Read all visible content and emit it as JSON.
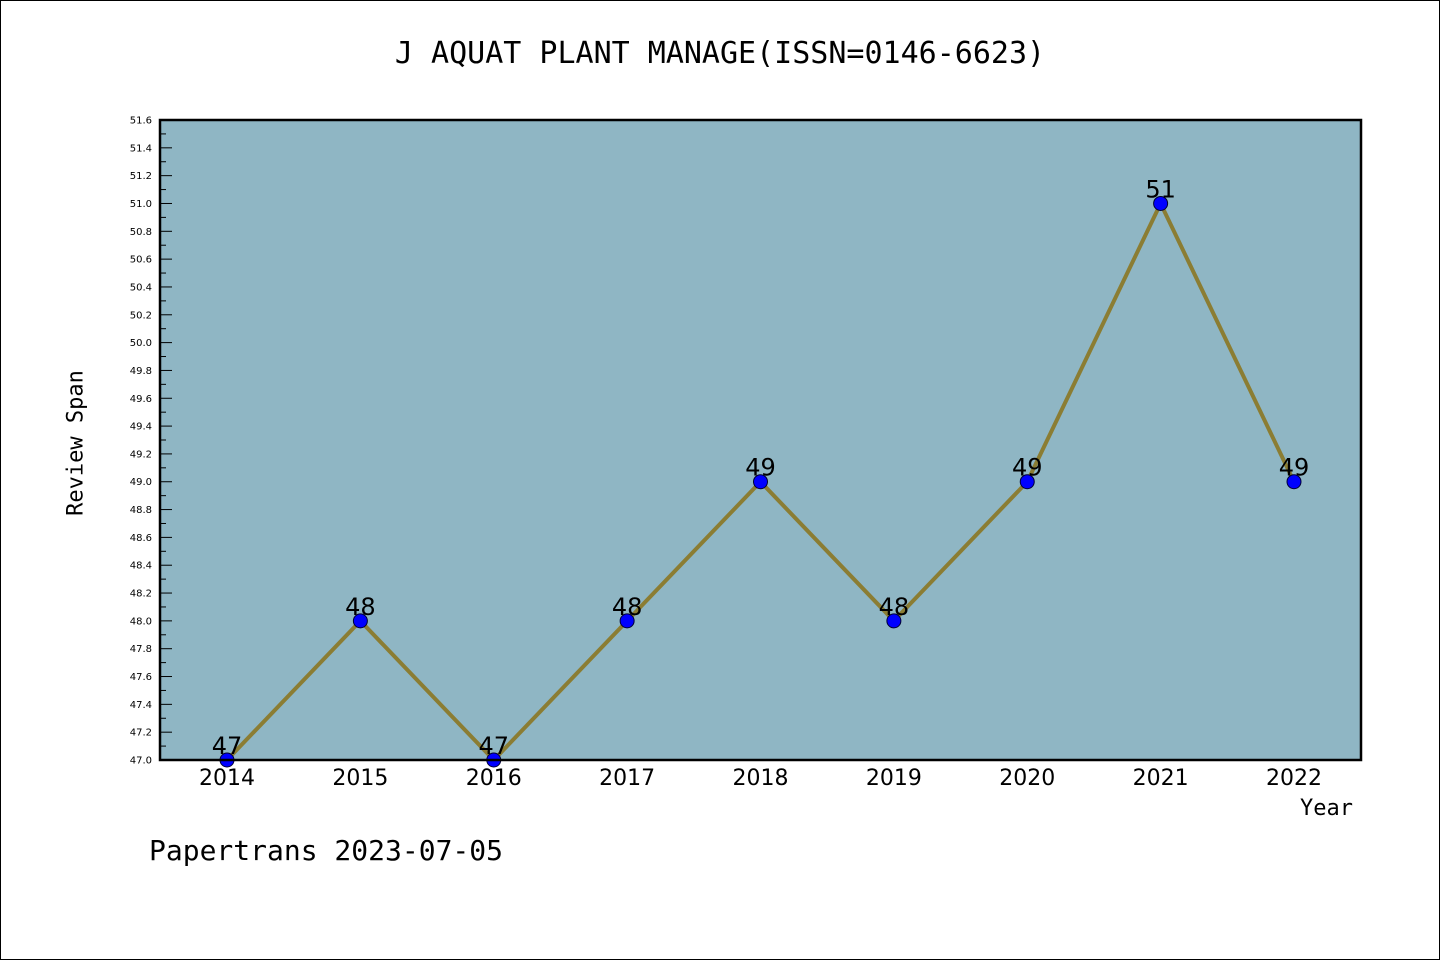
{
  "chart_data": {
    "type": "line",
    "title": "J AQUAT PLANT MANAGE(ISSN=0146-6623)",
    "xlabel": "Year",
    "ylabel": "Review Span",
    "categories": [
      "2014",
      "2015",
      "2016",
      "2017",
      "2018",
      "2019",
      "2020",
      "2021",
      "2022"
    ],
    "values": [
      47,
      48,
      47,
      48,
      49,
      48,
      49,
      51,
      49
    ],
    "data_labels": [
      "47",
      "48",
      "47",
      "48",
      "49",
      "48",
      "49",
      "51",
      "49"
    ],
    "ylim": [
      47.0,
      51.6
    ],
    "yticks": [
      "47.0",
      "47.2",
      "47.4",
      "47.6",
      "47.8",
      "48.0",
      "48.2",
      "48.4",
      "48.6",
      "48.8",
      "49.0",
      "49.2",
      "49.4",
      "49.6",
      "49.8",
      "50.0",
      "50.2",
      "50.4",
      "50.6",
      "50.8",
      "51.0",
      "51.2",
      "51.4",
      "51.6"
    ],
    "grid": false,
    "colors": {
      "plot_background": "#8fb6c4",
      "line": "#8b7d33",
      "marker": "#0000ff"
    }
  },
  "footer": "Papertrans 2023-07-05"
}
